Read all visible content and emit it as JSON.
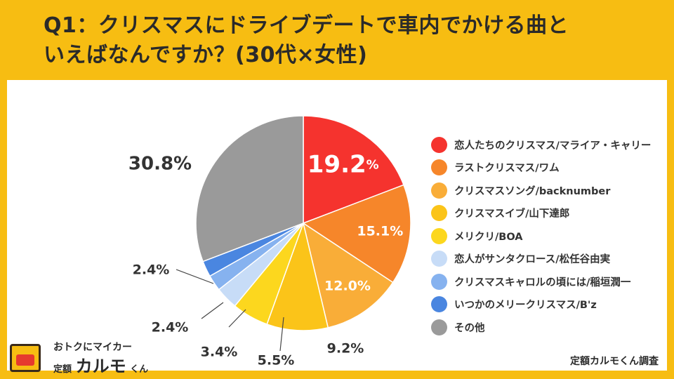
{
  "header": {
    "title_line1": "Q1：クリスマスにドライブデートで車内でかける曲と",
    "title_line2": "いえばなんですか？(30代×女性)"
  },
  "colors": {
    "background": "#f7bd12",
    "panel": "#ffffff"
  },
  "chart_data": {
    "type": "pie",
    "title": "Q1：クリスマスにドライブデートで車内でかける曲といえばなんですか？(30代×女性)",
    "unit": "%",
    "slices": [
      {
        "label": "恋人たちのクリスマス/マライア・キャリー",
        "value": 19.2,
        "display": "19.2",
        "color": "#f5332e"
      },
      {
        "label": "ラストクリスマス/ワム",
        "value": 15.1,
        "display": "15.1%",
        "color": "#f6862a"
      },
      {
        "label": "クリスマスソング/backnumber",
        "value": 12.0,
        "display": "12.0%",
        "color": "#f9ad38"
      },
      {
        "label": "クリスマスイブ/山下達郎",
        "value": 9.2,
        "display": "9.2%",
        "color": "#fbc419"
      },
      {
        "label": "メリクリ/BOA",
        "value": 5.5,
        "display": "5.5%",
        "color": "#fcd71e"
      },
      {
        "label": "恋人がサンタクロース/松任谷由実",
        "value": 3.4,
        "display": "3.4%",
        "color": "#c7dcf7"
      },
      {
        "label": "クリスマスキャロルの頃には/稲垣潤一",
        "value": 2.4,
        "display": "2.4%",
        "color": "#86b2ef"
      },
      {
        "label": "いつかのメリークリスマス/B'z",
        "value": 2.4,
        "display": "2.4%",
        "color": "#4a86e0"
      },
      {
        "label": "その他",
        "value": 30.8,
        "display": "30.8%",
        "color": "#9a9a9a"
      }
    ],
    "first_slice_unit": "%"
  },
  "footer": {
    "logo_line1": "おトクにマイカー",
    "logo_line2_a": "定額",
    "logo_line2_b": "カルモ",
    "logo_line2_c": "くん",
    "source": "定額カルモくん調査"
  }
}
